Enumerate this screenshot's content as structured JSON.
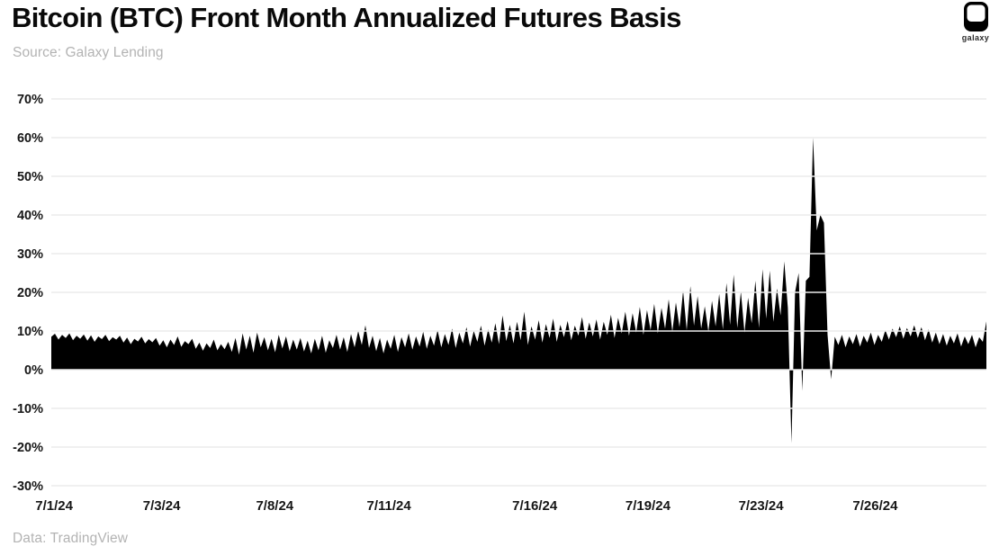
{
  "header": {
    "title": "Bitcoin (BTC) Front Month Annualized Futures Basis",
    "source": "Source: Galaxy Lending",
    "logo_text": "galaxy"
  },
  "footer": {
    "data_source": "Data: TradingView"
  },
  "colors": {
    "series": "#000000",
    "grid": "#ebebeb",
    "text": "#161616",
    "muted_text": "#b3b3b3",
    "background": "#ffffff"
  },
  "chart_data": {
    "type": "area",
    "title": "Bitcoin (BTC) Front Month Annualized Futures Basis",
    "xlabel": "",
    "ylabel": "",
    "unit": "%",
    "grid": true,
    "legend": "none",
    "ylim": [
      -30,
      70
    ],
    "y_tick_values": [
      70,
      60,
      50,
      40,
      30,
      20,
      10,
      0,
      -10,
      -20,
      -30
    ],
    "y_tick_labels": [
      "70%",
      "60%",
      "50%",
      "40%",
      "30%",
      "20%",
      "10%",
      "0%",
      "-10%",
      "-20%",
      "-30%"
    ],
    "x_ticks": [
      {
        "label": "7/1/24",
        "f": 0.003
      },
      {
        "label": "7/3/24",
        "f": 0.118
      },
      {
        "label": "7/8/24",
        "f": 0.239
      },
      {
        "label": "7/11/24",
        "f": 0.361
      },
      {
        "label": "7/16/24",
        "f": 0.517
      },
      {
        "label": "7/19/24",
        "f": 0.638
      },
      {
        "label": "7/23/24",
        "f": 0.759
      },
      {
        "label": "7/26/24",
        "f": 0.881
      }
    ],
    "series_name": "BTC front month annualized futures basis (%)",
    "values": [
      8.5,
      9.3,
      7.8,
      9.0,
      8.2,
      9.4,
      7.6,
      8.8,
      8.0,
      9.1,
      7.5,
      8.9,
      7.2,
      8.6,
      7.9,
      9.0,
      7.4,
      8.4,
      7.8,
      8.8,
      7.0,
      8.3,
      6.6,
      8.0,
      7.3,
      8.5,
      6.8,
      7.9,
      7.1,
      8.2,
      6.2,
      7.6,
      5.8,
      7.8,
      6.4,
      8.6,
      5.9,
      7.4,
      6.6,
      8.0,
      5.4,
      7.0,
      4.9,
      6.8,
      5.6,
      7.8,
      5.0,
      6.6,
      5.3,
      7.2,
      4.6,
      8.2,
      3.9,
      9.4,
      5.2,
      8.8,
      4.4,
      9.6,
      5.8,
      8.4,
      5.0,
      8.0,
      4.5,
      9.0,
      5.5,
      8.6,
      4.8,
      7.8,
      5.2,
      8.2,
      4.7,
      7.5,
      4.2,
      8.0,
      5.0,
      8.8,
      4.4,
      7.6,
      5.6,
      9.0,
      5.2,
      8.4,
      4.6,
      9.2,
      5.8,
      10.0,
      6.4,
      11.5,
      5.6,
      8.8,
      4.8,
      8.2,
      4.2,
      7.8,
      5.4,
      9.0,
      4.6,
      8.4,
      5.8,
      9.4,
      5.2,
      8.6,
      6.0,
      9.8,
      5.4,
      8.8,
      6.2,
      10.2,
      5.8,
      9.2,
      6.4,
      10.6,
      5.6,
      9.6,
      6.8,
      11.0,
      6.0,
      10.0,
      7.2,
      11.4,
      6.2,
      10.4,
      7.0,
      12.0,
      6.6,
      14.0,
      7.4,
      11.6,
      6.8,
      12.4,
      7.6,
      15.0,
      6.4,
      11.2,
      7.8,
      12.8,
      7.0,
      11.8,
      8.2,
      13.2,
      7.2,
      11.6,
      8.4,
      12.6,
      7.6,
      11.4,
      8.8,
      13.6,
      8.0,
      12.2,
      8.6,
      13.0,
      7.8,
      12.4,
      9.0,
      14.2,
      8.2,
      13.4,
      9.4,
      15.0,
      8.8,
      14.6,
      9.6,
      16.2,
      9.0,
      15.4,
      10.2,
      17.0,
      9.4,
      16.0,
      10.6,
      18.2,
      9.8,
      17.4,
      11.0,
      20.4,
      10.2,
      21.6,
      11.4,
      19.0,
      10.6,
      16.4,
      9.8,
      17.8,
      11.2,
      19.6,
      10.4,
      22.4,
      11.6,
      24.6,
      10.8,
      20.2,
      9.6,
      18.6,
      12.0,
      23.0,
      10.8,
      26.0,
      13.2,
      25.6,
      12.4,
      21.0,
      14.0,
      28.0,
      16.0,
      -19.0,
      20.0,
      25.0,
      -5.5,
      23.0,
      24.0,
      60.0,
      36.0,
      40.0,
      38.0,
      9.0,
      -2.5,
      8.5,
      6.4,
      9.0,
      5.8,
      8.6,
      6.6,
      9.2,
      6.0,
      8.8,
      7.0,
      9.6,
      6.4,
      9.0,
      7.2,
      10.2,
      7.8,
      10.6,
      8.4,
      11.2,
      8.0,
      10.8,
      8.6,
      11.5,
      8.2,
      11.0,
      7.6,
      10.4,
      7.0,
      9.6,
      6.6,
      9.2,
      6.2,
      8.8,
      6.8,
      9.4,
      6.0,
      8.6,
      6.6,
      9.0,
      5.8,
      8.4,
      7.2,
      12.5
    ]
  }
}
